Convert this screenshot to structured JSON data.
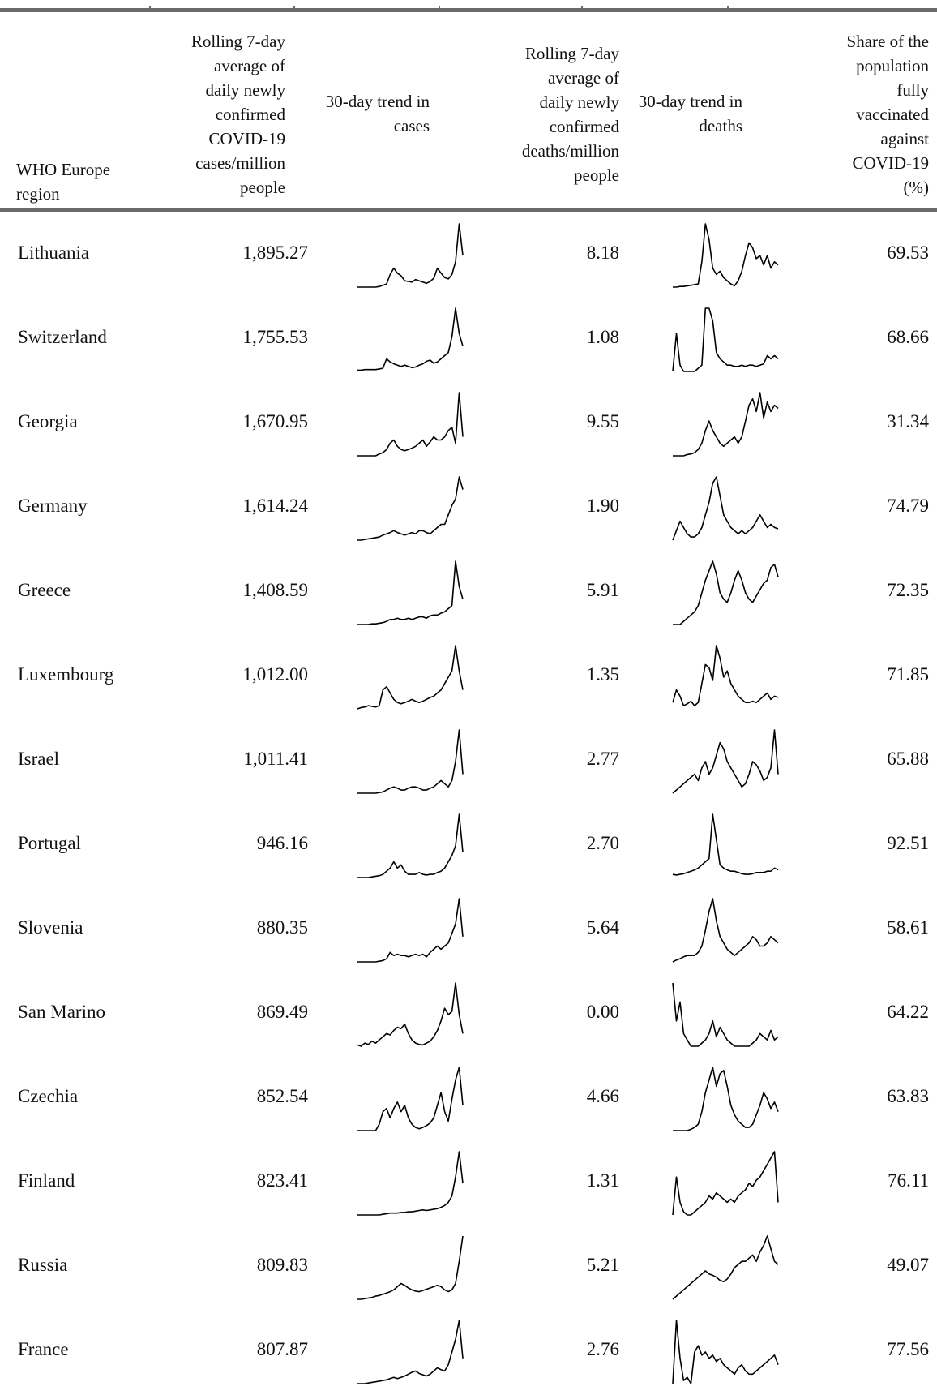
{
  "table": {
    "headers": {
      "region": [
        "WHO Europe",
        "region"
      ],
      "cases_avg": [
        "Rolling 7-day",
        "average of",
        "daily newly",
        "confirmed",
        "COVID-19",
        "cases/million",
        "people"
      ],
      "cases_trend": [
        "30-day trend in",
        "cases"
      ],
      "deaths_avg": [
        "Rolling 7-day",
        "average of",
        "daily newly",
        "confirmed",
        "deaths/million",
        "people"
      ],
      "deaths_trend": [
        "30-day trend in",
        "deaths"
      ],
      "vaccinated": [
        "Share of the",
        "population",
        "fully",
        "vaccinated",
        "against",
        "COVID-19",
        "(%)"
      ]
    },
    "rows": [
      {
        "region": "Lithuania",
        "cases": "1,895.27",
        "deaths": "8.18",
        "vaccinated": "69.53",
        "cases_trend": [
          0,
          0,
          0,
          0,
          0,
          0,
          1,
          3,
          5,
          20,
          30,
          22,
          18,
          10,
          9,
          8,
          12,
          10,
          8,
          6,
          9,
          14,
          30,
          22,
          15,
          13,
          20,
          40,
          100,
          50
        ],
        "deaths_trend": [
          0,
          0,
          1,
          1,
          2,
          3,
          4,
          5,
          40,
          100,
          75,
          30,
          20,
          25,
          15,
          10,
          5,
          2,
          10,
          25,
          50,
          70,
          62,
          45,
          50,
          35,
          50,
          30,
          40,
          35
        ]
      },
      {
        "region": "Switzerland",
        "cases": "1,755.53",
        "deaths": "1.08",
        "vaccinated": "68.66",
        "cases_trend": [
          2,
          2,
          3,
          3,
          3,
          3,
          4,
          5,
          20,
          15,
          12,
          10,
          8,
          10,
          8,
          6,
          7,
          10,
          12,
          16,
          18,
          13,
          15,
          20,
          25,
          30,
          55,
          100,
          60,
          40
        ],
        "deaths_trend": [
          0,
          60,
          10,
          0,
          0,
          0,
          0,
          5,
          10,
          100,
          100,
          80,
          30,
          20,
          15,
          10,
          10,
          8,
          8,
          10,
          8,
          10,
          10,
          8,
          10,
          12,
          25,
          20,
          25,
          20
        ]
      },
      {
        "region": "Georgia",
        "cases": "1,670.95",
        "deaths": "9.55",
        "vaccinated": "31.34",
        "cases_trend": [
          0,
          0,
          0,
          0,
          0,
          0,
          3,
          5,
          10,
          20,
          25,
          15,
          10,
          8,
          10,
          12,
          15,
          20,
          25,
          15,
          22,
          30,
          25,
          25,
          30,
          40,
          45,
          20,
          100,
          30
        ],
        "deaths_trend": [
          0,
          0,
          0,
          0,
          2,
          3,
          5,
          10,
          20,
          40,
          55,
          40,
          30,
          20,
          15,
          20,
          25,
          30,
          20,
          30,
          55,
          80,
          90,
          70,
          100,
          60,
          85,
          70,
          80,
          75
        ]
      },
      {
        "region": "Germany",
        "cases": "1,614.24",
        "deaths": "1.90",
        "vaccinated": "74.79",
        "cases_trend": [
          0,
          0,
          1,
          2,
          3,
          4,
          5,
          8,
          10,
          12,
          15,
          12,
          10,
          8,
          10,
          12,
          10,
          15,
          15,
          12,
          10,
          15,
          20,
          25,
          25,
          40,
          55,
          65,
          100,
          80
        ],
        "deaths_trend": [
          0,
          15,
          30,
          20,
          10,
          5,
          5,
          10,
          20,
          40,
          60,
          90,
          100,
          70,
          40,
          30,
          20,
          15,
          10,
          15,
          10,
          15,
          20,
          30,
          40,
          30,
          20,
          25,
          20,
          18
        ]
      },
      {
        "region": "Greece",
        "cases": "1,408.59",
        "deaths": "5.91",
        "vaccinated": "72.35",
        "cases_trend": [
          0,
          0,
          0,
          0,
          1,
          1,
          2,
          3,
          5,
          8,
          8,
          10,
          8,
          8,
          10,
          8,
          10,
          12,
          12,
          10,
          14,
          15,
          15,
          18,
          20,
          25,
          30,
          100,
          60,
          40
        ],
        "deaths_trend": [
          0,
          0,
          0,
          5,
          10,
          15,
          20,
          30,
          50,
          70,
          85,
          100,
          80,
          50,
          40,
          35,
          50,
          70,
          85,
          70,
          50,
          40,
          35,
          45,
          55,
          65,
          70,
          90,
          95,
          75
        ]
      },
      {
        "region": "Luxembourg",
        "cases": "1,012.00",
        "deaths": "1.35",
        "vaccinated": "71.85",
        "cases_trend": [
          0,
          2,
          3,
          5,
          4,
          3,
          5,
          30,
          35,
          25,
          15,
          10,
          8,
          10,
          12,
          15,
          12,
          10,
          12,
          15,
          18,
          20,
          25,
          30,
          40,
          50,
          60,
          100,
          60,
          30
        ],
        "deaths_trend": [
          10,
          30,
          20,
          5,
          8,
          12,
          5,
          10,
          40,
          70,
          65,
          45,
          100,
          80,
          50,
          60,
          40,
          30,
          20,
          15,
          10,
          10,
          12,
          10,
          15,
          20,
          25,
          15,
          20,
          18
        ]
      },
      {
        "region": "Israel",
        "cases": "1,011.41",
        "deaths": "2.77",
        "vaccinated": "65.88",
        "cases_trend": [
          0,
          0,
          0,
          0,
          0,
          0,
          1,
          2,
          5,
          8,
          10,
          8,
          5,
          5,
          8,
          10,
          10,
          8,
          5,
          5,
          8,
          10,
          15,
          20,
          15,
          10,
          20,
          50,
          100,
          30
        ],
        "deaths_trend": [
          0,
          5,
          10,
          15,
          20,
          25,
          30,
          20,
          40,
          50,
          30,
          40,
          60,
          80,
          70,
          50,
          40,
          30,
          20,
          10,
          15,
          30,
          50,
          45,
          35,
          20,
          25,
          40,
          100,
          30
        ]
      },
      {
        "region": "Portugal",
        "cases": "946.16",
        "deaths": "2.70",
        "vaccinated": "92.51",
        "cases_trend": [
          0,
          0,
          0,
          0,
          1,
          2,
          3,
          5,
          10,
          15,
          25,
          15,
          20,
          10,
          5,
          5,
          5,
          8,
          5,
          4,
          5,
          5,
          8,
          10,
          15,
          25,
          35,
          50,
          100,
          40
        ],
        "deaths_trend": [
          5,
          4,
          5,
          6,
          8,
          10,
          12,
          15,
          20,
          25,
          30,
          100,
          60,
          20,
          15,
          12,
          10,
          10,
          8,
          6,
          5,
          5,
          6,
          8,
          8,
          8,
          10,
          10,
          15,
          12
        ]
      },
      {
        "region": "Slovenia",
        "cases": "880.35",
        "deaths": "5.64",
        "vaccinated": "58.61",
        "cases_trend": [
          0,
          0,
          0,
          0,
          0,
          0,
          1,
          2,
          5,
          15,
          10,
          12,
          10,
          10,
          8,
          10,
          12,
          10,
          12,
          8,
          15,
          20,
          25,
          20,
          25,
          30,
          45,
          60,
          100,
          40
        ],
        "deaths_trend": [
          0,
          3,
          5,
          8,
          10,
          10,
          10,
          15,
          25,
          50,
          80,
          100,
          65,
          40,
          30,
          20,
          15,
          10,
          15,
          20,
          25,
          30,
          40,
          35,
          25,
          25,
          30,
          40,
          35,
          30
        ]
      },
      {
        "region": "San Marino",
        "cases": "869.49",
        "deaths": "0.00",
        "vaccinated": "64.22",
        "cases_trend": [
          2,
          0,
          5,
          3,
          8,
          5,
          10,
          15,
          20,
          18,
          25,
          30,
          28,
          35,
          20,
          10,
          5,
          3,
          2,
          5,
          8,
          15,
          25,
          40,
          60,
          50,
          55,
          100,
          50,
          20
        ],
        "deaths_trend": [
          100,
          40,
          70,
          20,
          10,
          0,
          0,
          0,
          5,
          10,
          20,
          40,
          15,
          30,
          20,
          10,
          5,
          0,
          0,
          0,
          0,
          0,
          5,
          10,
          20,
          15,
          10,
          25,
          10,
          15
        ]
      },
      {
        "region": "Czechia",
        "cases": "852.54",
        "deaths": "4.66",
        "vaccinated": "63.83",
        "cases_trend": [
          0,
          0,
          0,
          0,
          0,
          0,
          10,
          30,
          35,
          20,
          35,
          45,
          30,
          40,
          20,
          10,
          5,
          3,
          5,
          8,
          12,
          20,
          40,
          60,
          30,
          15,
          50,
          80,
          100,
          40
        ],
        "deaths_trend": [
          0,
          0,
          0,
          0,
          0,
          2,
          5,
          10,
          30,
          60,
          80,
          100,
          70,
          90,
          95,
          70,
          40,
          25,
          15,
          10,
          5,
          5,
          10,
          25,
          40,
          60,
          50,
          35,
          45,
          30
        ]
      },
      {
        "region": "Finland",
        "cases": "823.41",
        "deaths": "1.31",
        "vaccinated": "76.11",
        "cases_trend": [
          0,
          0,
          0,
          0,
          0,
          0,
          0,
          1,
          2,
          3,
          3,
          3,
          4,
          4,
          5,
          5,
          6,
          7,
          8,
          7,
          8,
          9,
          10,
          12,
          15,
          20,
          30,
          60,
          100,
          50
        ],
        "deaths_trend": [
          0,
          60,
          20,
          5,
          0,
          0,
          5,
          10,
          15,
          20,
          30,
          25,
          35,
          30,
          25,
          20,
          25,
          20,
          30,
          35,
          40,
          50,
          45,
          55,
          60,
          70,
          80,
          90,
          100,
          20
        ]
      },
      {
        "region": "Russia",
        "cases": "809.83",
        "deaths": "5.21",
        "vaccinated": "49.07",
        "cases_trend": [
          0,
          0,
          1,
          2,
          3,
          5,
          6,
          8,
          10,
          12,
          15,
          20,
          25,
          22,
          18,
          15,
          13,
          12,
          14,
          16,
          18,
          20,
          22,
          20,
          15,
          12,
          15,
          25,
          60,
          100
        ],
        "deaths_trend": [
          0,
          5,
          10,
          15,
          20,
          25,
          30,
          35,
          40,
          45,
          40,
          38,
          35,
          30,
          28,
          32,
          40,
          50,
          55,
          60,
          60,
          65,
          70,
          60,
          75,
          85,
          100,
          80,
          60,
          55
        ]
      },
      {
        "region": "France",
        "cases": "807.87",
        "deaths": "2.76",
        "vaccinated": "77.56",
        "cases_trend": [
          0,
          0,
          0,
          1,
          2,
          3,
          4,
          5,
          6,
          8,
          10,
          8,
          10,
          12,
          15,
          18,
          20,
          16,
          14,
          12,
          15,
          20,
          25,
          22,
          20,
          30,
          50,
          70,
          100,
          40
        ],
        "deaths_trend": [
          0,
          100,
          40,
          5,
          10,
          0,
          50,
          60,
          45,
          50,
          40,
          45,
          35,
          40,
          30,
          25,
          20,
          15,
          25,
          30,
          20,
          15,
          15,
          20,
          25,
          30,
          35,
          40,
          45,
          30
        ]
      }
    ]
  }
}
